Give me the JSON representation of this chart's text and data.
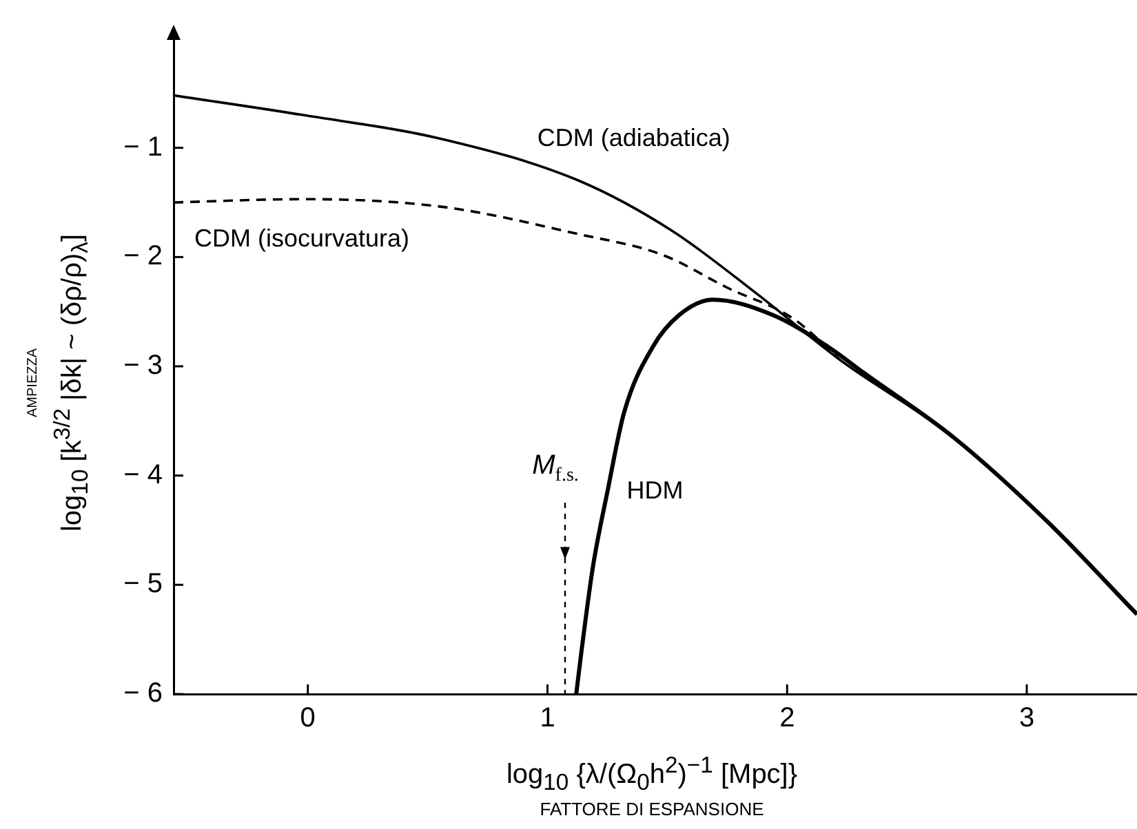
{
  "chart_data": {
    "type": "line",
    "xlabel": "log$_{10}$ {λ/(Ω$_{0}$h$^{2}$)$^{−1}$ [Mpc]}",
    "ylabel": "log$_{10}$ [k$^{3/2}$ |δk| ~ (δρ/ρ)$_{λ}$]",
    "xlim": [
      -0.56,
      3.46
    ],
    "xticks": [
      0,
      1,
      2,
      3
    ],
    "ylim": [
      -6,
      0
    ],
    "yticks": [
      {
        "value": -1,
        "label": "− 1"
      },
      {
        "value": -2,
        "label": "− 2"
      },
      {
        "value": -3,
        "label": "− 3"
      },
      {
        "value": -4,
        "label": "− 4"
      },
      {
        "value": -5,
        "label": "− 5"
      },
      {
        "value": -6,
        "label": "− 6"
      }
    ],
    "grid": false,
    "legend": false,
    "marker": "none",
    "series": [
      {
        "name": "CDM (adiabatica)",
        "color": "#000000",
        "line_style": "solid",
        "x": [
          -0.56,
          -0.02,
          0.56,
          1.13,
          1.52,
          1.87,
          2.22,
          2.7,
          3.09,
          3.46
        ],
        "values": [
          -0.52,
          -0.7,
          -0.92,
          -1.3,
          -1.76,
          -2.33,
          -2.94,
          -3.66,
          -4.43,
          -5.27
        ]
      },
      {
        "name": "CDM (isocurvatura)",
        "color": "#000000",
        "line_style": "dashed",
        "x": [
          -0.56,
          -0.02,
          0.56,
          1.13,
          1.48,
          1.75,
          2.03,
          2.22
        ],
        "values": [
          -1.5,
          -1.47,
          -1.54,
          -1.79,
          -1.98,
          -2.28,
          -2.57,
          -2.94
        ]
      },
      {
        "name": "HDM",
        "color": "#000000",
        "line_style": "solid",
        "x": [
          1.12,
          1.14,
          1.19,
          1.25,
          1.32,
          1.44,
          1.55,
          1.69,
          1.94,
          2.17,
          2.32,
          2.7,
          3.09,
          3.46
        ],
        "values": [
          -6,
          -5.64,
          -4.83,
          -4.15,
          -3.42,
          -2.82,
          -2.53,
          -2.39,
          -2.53,
          -2.82,
          -3.06,
          -3.66,
          -4.43,
          -5.27
        ]
      }
    ],
    "annotations": [
      "AMPIEZZA",
      "FATTORE DI ESPANSIONE",
      "M$_{f.s.}$"
    ]
  }
}
